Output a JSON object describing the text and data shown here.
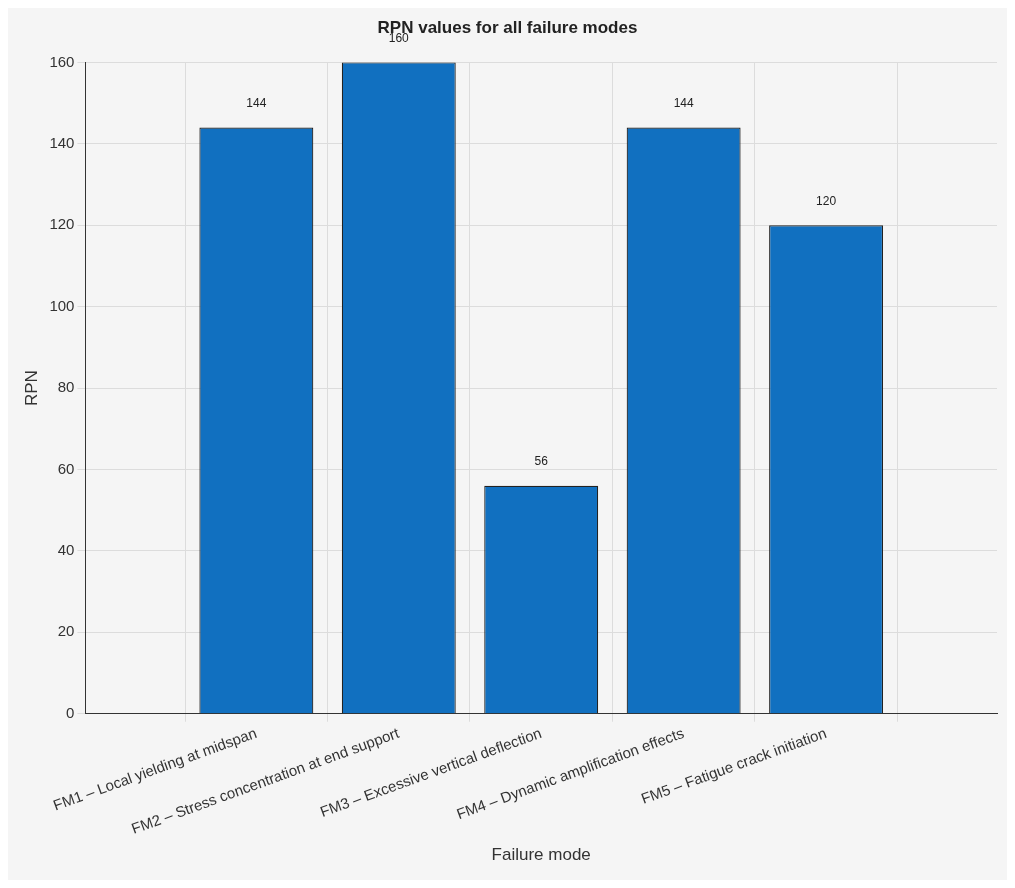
{
  "chart_data": {
    "type": "bar",
    "title": "RPN values for all failure modes",
    "xlabel": "Failure mode",
    "ylabel": "RPN",
    "categories": [
      "FM1 – Local yielding at midspan",
      "FM2 – Stress concentration at end support",
      "FM3 – Excessive vertical deflection",
      "FM4 – Dynamic amplification effects",
      "FM5 – Fatigue crack initiation"
    ],
    "values": [
      144,
      160,
      56,
      144,
      120
    ],
    "color": "#1170c0",
    "ylim": [
      0,
      160
    ],
    "yticks": [
      0,
      20,
      40,
      60,
      80,
      100,
      120,
      140,
      160
    ],
    "grid": true,
    "data_labels": true
  }
}
